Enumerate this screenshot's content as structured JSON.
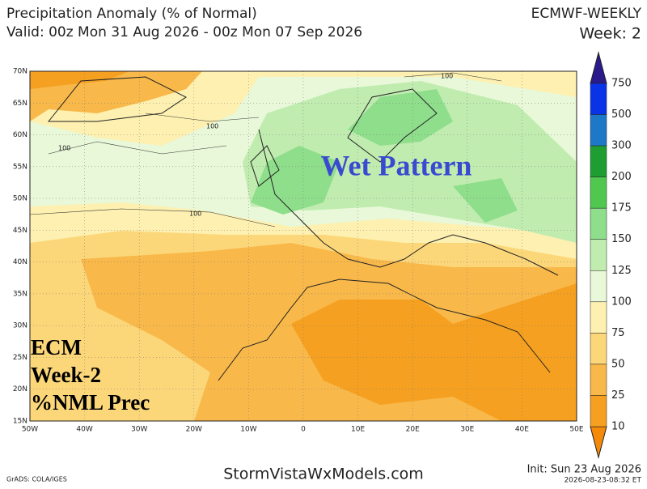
{
  "header": {
    "title": "Precipitation Anomaly (% of Normal)",
    "valid": "Valid: 00z Mon 31 Aug 2026 - 00z Mon 07 Sep 2026",
    "model": "ECMWF-WEEKLY",
    "week": "Week: 2"
  },
  "map": {
    "lat_labels": [
      "70N",
      "65N",
      "60N",
      "55N",
      "50N",
      "45N",
      "40N",
      "35N",
      "30N",
      "25N",
      "20N",
      "15N"
    ],
    "lon_labels": [
      "50W",
      "40W",
      "30W",
      "20W",
      "10W",
      "0",
      "10E",
      "20E",
      "30E",
      "40E",
      "50E"
    ],
    "contour_labels": [
      "100",
      "100",
      "100",
      "100"
    ],
    "annotation": "Wet Pattern",
    "overlay": [
      "ECM",
      "Week-2",
      "%NML Prec"
    ]
  },
  "colorbar": {
    "labels": [
      "750",
      "500",
      "300",
      "200",
      "175",
      "150",
      "125",
      "100",
      "75",
      "50",
      "25",
      "10"
    ]
  },
  "footer": {
    "credit": "GrADS: COLA/IGES",
    "site": "StormVistaWxModels.com",
    "init": "Init: Sun 23 Aug 2026",
    "timestamp": "2026-08-23-08:32 ET"
  }
}
